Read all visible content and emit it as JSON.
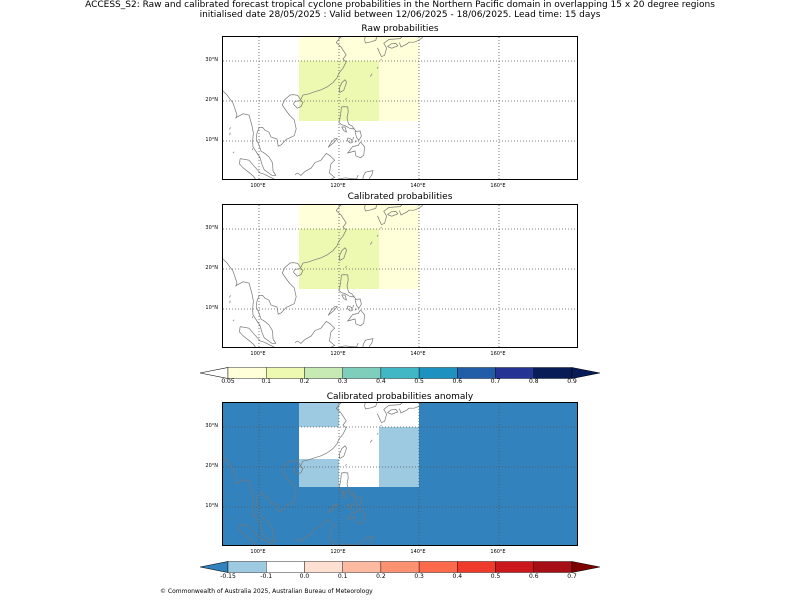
{
  "title": {
    "line1": "ACCESS_S2: Raw and calibrated forecast tropical cyclone probabilities in the Northern Pacific domain in overlapping 15 x 20 degree regions",
    "line2": "initialised date 28/05/2025 :  Valid between 12/06/2025 - 18/06/2025. Lead time: 15 days"
  },
  "map_extent": {
    "lon_min": 91,
    "lon_max": 180,
    "lat_min": 0,
    "lat_max": 36
  },
  "lon_ticks": [
    {
      "value": 100,
      "label": "100°E"
    },
    {
      "value": 120,
      "label": "120°E"
    },
    {
      "value": 140,
      "label": "140°E"
    },
    {
      "value": 160,
      "label": "160°E"
    }
  ],
  "lat_ticks": [
    {
      "value": 10,
      "label": "10°N"
    },
    {
      "value": 20,
      "label": "20°N"
    },
    {
      "value": 30,
      "label": "30°N"
    }
  ],
  "panels": [
    {
      "title": "Raw probabilities",
      "background": "#ffffff",
      "cells": [
        {
          "lon": [
            110,
            130
          ],
          "lat": [
            30,
            36
          ],
          "color": "#ffffd9"
        },
        {
          "lon": [
            110,
            130
          ],
          "lat": [
            15,
            30
          ],
          "color": "#edf8b1"
        },
        {
          "lon": [
            130,
            140
          ],
          "lat": [
            15,
            36
          ],
          "color": "#ffffd9"
        }
      ]
    },
    {
      "title": "Calibrated probabilities",
      "background": "#ffffff",
      "cells": [
        {
          "lon": [
            110,
            130
          ],
          "lat": [
            30,
            36
          ],
          "color": "#ffffd9"
        },
        {
          "lon": [
            110,
            130
          ],
          "lat": [
            15,
            30
          ],
          "color": "#edf8b1"
        },
        {
          "lon": [
            130,
            140
          ],
          "lat": [
            15,
            36
          ],
          "color": "#ffffd9"
        }
      ]
    },
    {
      "title": "Calibrated probabilities anomaly",
      "background": "#3182bd",
      "cells": [
        {
          "lon": [
            110,
            120
          ],
          "lat": [
            30,
            36
          ],
          "color": "#9ecae1"
        },
        {
          "lon": [
            110,
            120
          ],
          "lat": [
            22,
            30
          ],
          "color": "#ffffff"
        },
        {
          "lon": [
            110,
            120
          ],
          "lat": [
            15,
            22
          ],
          "color": "#9ecae1"
        },
        {
          "lon": [
            120,
            130
          ],
          "lat": [
            15,
            36
          ],
          "color": "#ffffff"
        },
        {
          "lon": [
            130,
            140
          ],
          "lat": [
            30,
            36
          ],
          "color": "#ffffff"
        },
        {
          "lon": [
            130,
            140
          ],
          "lat": [
            15,
            30
          ],
          "color": "#9ecae1"
        }
      ]
    }
  ],
  "colorbars": [
    {
      "name": "probability",
      "under_color": "#ffffff",
      "over_color": "#081d58",
      "colors": [
        "#ffffd9",
        "#edf8b1",
        "#c7e9b4",
        "#7fcdbb",
        "#41b6c4",
        "#1d91c0",
        "#225ea8",
        "#253494",
        "#081d58"
      ],
      "labels": [
        "0.05",
        "0.1",
        "0.2",
        "0.3",
        "0.4",
        "0.5",
        "0.6",
        "0.7",
        "0.8",
        "0.9"
      ]
    },
    {
      "name": "anomaly",
      "under_color": "#3182bd",
      "over_color": "#7f0000",
      "colors": [
        "#9ecae1",
        "#ffffff",
        "#fee0d2",
        "#fcbba1",
        "#fc9272",
        "#fb6a4a",
        "#ef3b2c",
        "#cb181d",
        "#a50f15"
      ],
      "labels": [
        "-0.15",
        "-0.1",
        "0.0",
        "0.1",
        "0.2",
        "0.3",
        "0.4",
        "0.5",
        "0.6",
        "0.7"
      ]
    }
  ],
  "colors": {
    "coastline": "#777777",
    "gridline": "#555555",
    "frame": "#000000"
  },
  "footer": "© Commonwealth of Australia 2025, Australian Bureau of Meteorology"
}
